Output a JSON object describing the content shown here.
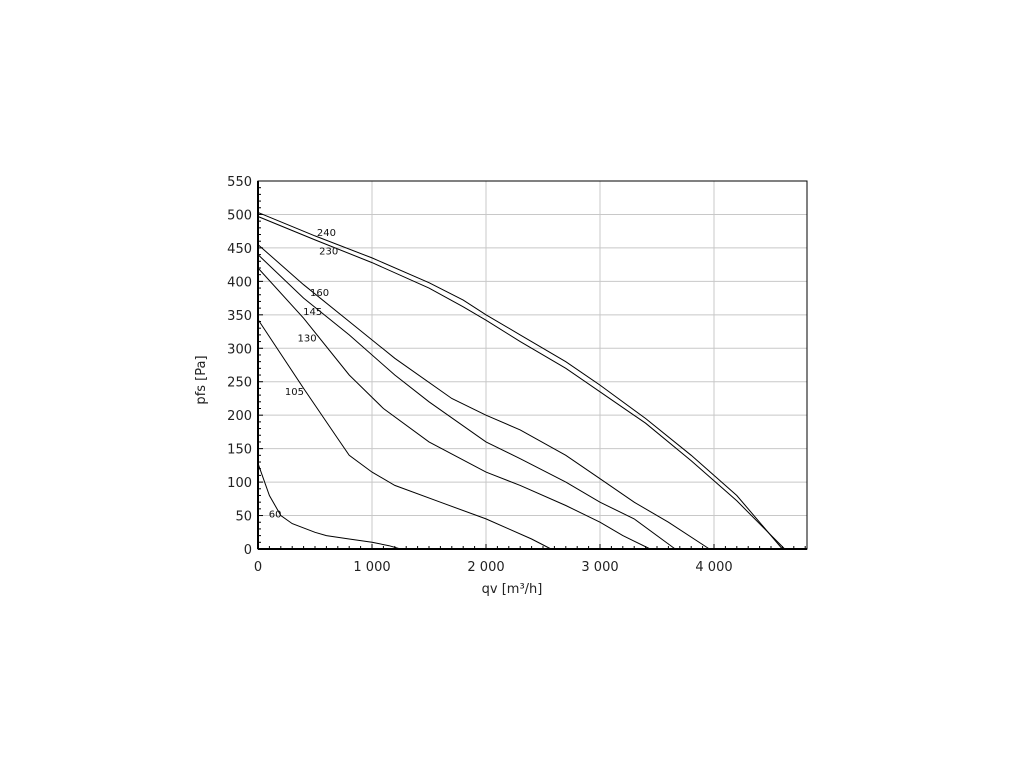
{
  "chart_data": {
    "type": "line",
    "title": "",
    "xlabel": "qv [m³/h]",
    "ylabel": "pfs [Pa]",
    "xlim": [
      0,
      4800
    ],
    "ylim": [
      0,
      550
    ],
    "grid": true,
    "x_ticks": [
      0,
      1000,
      2000,
      3000,
      4000
    ],
    "x_tick_labels": [
      "0",
      "1 000",
      "2 000",
      "3 000",
      "4 000"
    ],
    "y_ticks": [
      0,
      50,
      100,
      150,
      200,
      250,
      300,
      350,
      400,
      450,
      500,
      550
    ],
    "y_tick_labels": [
      "0",
      "50",
      "100",
      "150",
      "200",
      "250",
      "300",
      "350",
      "400",
      "450",
      "500",
      "550"
    ],
    "series": [
      {
        "name": "240",
        "label_at": [
          600,
          468
        ],
        "x": [
          0,
          500,
          1000,
          1500,
          1800,
          2000,
          2300,
          2700,
          3000,
          3400,
          3800,
          4200,
          4600
        ],
        "y": [
          503,
          468,
          435,
          398,
          372,
          350,
          320,
          280,
          245,
          195,
          140,
          80,
          0
        ]
      },
      {
        "name": "230",
        "label_at": [
          620,
          440
        ],
        "x": [
          0,
          500,
          1000,
          1500,
          1800,
          2000,
          2300,
          2700,
          3000,
          3400,
          3800,
          4200,
          4620
        ],
        "y": [
          497,
          462,
          428,
          390,
          362,
          342,
          310,
          270,
          235,
          188,
          132,
          72,
          0
        ]
      },
      {
        "name": "160",
        "label_at": [
          540,
          378
        ],
        "x": [
          0,
          400,
          800,
          1200,
          1700,
          2000,
          2300,
          2700,
          3000,
          3300,
          3600,
          3960
        ],
        "y": [
          455,
          395,
          340,
          285,
          225,
          200,
          178,
          140,
          105,
          70,
          40,
          0
        ]
      },
      {
        "name": "145",
        "label_at": [
          480,
          350
        ],
        "x": [
          0,
          400,
          800,
          1200,
          1500,
          2000,
          2300,
          2700,
          3000,
          3300,
          3660
        ],
        "y": [
          440,
          375,
          320,
          260,
          220,
          160,
          135,
          100,
          70,
          45,
          0
        ]
      },
      {
        "name": "130",
        "label_at": [
          430,
          310
        ],
        "x": [
          0,
          400,
          800,
          1100,
          1500,
          2000,
          2300,
          2700,
          3000,
          3200,
          3440
        ],
        "y": [
          420,
          345,
          260,
          210,
          160,
          115,
          95,
          65,
          40,
          20,
          0
        ]
      },
      {
        "name": "105",
        "label_at": [
          320,
          230
        ],
        "x": [
          0,
          400,
          700,
          800,
          1000,
          1200,
          1600,
          2000,
          2200,
          2400,
          2570
        ],
        "y": [
          343,
          240,
          165,
          140,
          115,
          95,
          70,
          45,
          30,
          15,
          0
        ]
      },
      {
        "name": "60",
        "label_at": [
          150,
          47
        ],
        "x": [
          0,
          100,
          200,
          300,
          500,
          600,
          800,
          1000,
          1150,
          1250
        ],
        "y": [
          128,
          80,
          50,
          38,
          25,
          20,
          15,
          10,
          5,
          0
        ]
      }
    ]
  }
}
